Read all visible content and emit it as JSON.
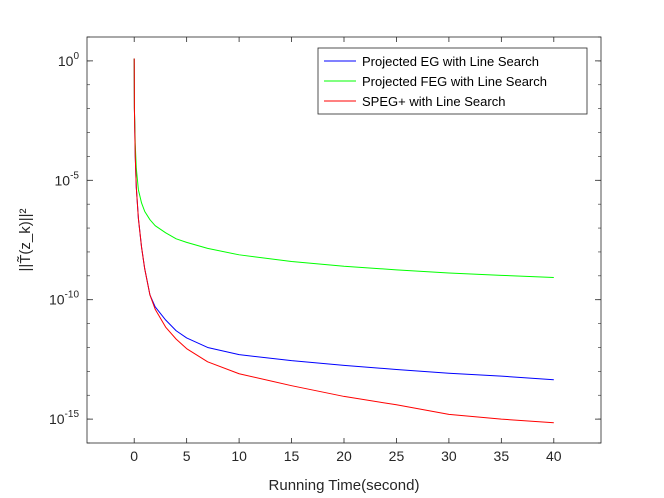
{
  "chart_data": {
    "type": "line",
    "title": "",
    "xlabel": "Running Time(second)",
    "ylabel": "||T̃(z_k)||²",
    "xlim": [
      -4.5,
      44.5
    ],
    "ylim_log10": [
      -16,
      1
    ],
    "yscale": "log",
    "grid": false,
    "legend_position": "top-right",
    "x_ticks": [
      "0",
      "5",
      "10",
      "15",
      "20",
      "25",
      "30",
      "35",
      "40"
    ],
    "y_ticks": [
      {
        "base": "10",
        "exp": "0",
        "log10": 0
      },
      {
        "base": "10",
        "exp": "-5",
        "log10": -5
      },
      {
        "base": "10",
        "exp": "-10",
        "log10": -10
      },
      {
        "base": "10",
        "exp": "-15",
        "log10": -15
      }
    ],
    "series": [
      {
        "name": "Projected EG with Line Search",
        "color": "#0000ff",
        "x": [
          0,
          0.02,
          0.1,
          0.2,
          0.4,
          0.7,
          1,
          1.5,
          2,
          3,
          4,
          5,
          7,
          10,
          15,
          20,
          25,
          30,
          35,
          40
        ],
        "log10_y": [
          0.1,
          -2,
          -4,
          -5.3,
          -6.6,
          -7.8,
          -8.7,
          -9.8,
          -10.3,
          -10.85,
          -11.3,
          -11.6,
          -12.0,
          -12.3,
          -12.55,
          -12.75,
          -12.92,
          -13.08,
          -13.2,
          -13.35
        ]
      },
      {
        "name": "Projected FEG with Line Search",
        "color": "#00ff00",
        "x": [
          0,
          0.02,
          0.1,
          0.2,
          0.4,
          0.7,
          1,
          1.5,
          2,
          3,
          4,
          5,
          7,
          10,
          15,
          20,
          25,
          30,
          35,
          40
        ],
        "log10_y": [
          0.1,
          -2,
          -3.5,
          -4.5,
          -5.4,
          -5.95,
          -6.3,
          -6.65,
          -6.9,
          -7.2,
          -7.45,
          -7.6,
          -7.85,
          -8.12,
          -8.4,
          -8.6,
          -8.75,
          -8.88,
          -8.98,
          -9.07
        ]
      },
      {
        "name": "SPEG+ with Line Search",
        "color": "#ff0000",
        "x": [
          0,
          0.02,
          0.1,
          0.2,
          0.4,
          0.7,
          1,
          1.5,
          2,
          3,
          4,
          5,
          7,
          10,
          15,
          20,
          25,
          30,
          35,
          40
        ],
        "log10_y": [
          0.1,
          -2,
          -4,
          -5.3,
          -6.6,
          -7.8,
          -8.7,
          -9.8,
          -10.4,
          -11.15,
          -11.65,
          -12.05,
          -12.6,
          -13.1,
          -13.6,
          -14.05,
          -14.4,
          -14.8,
          -15.0,
          -15.15
        ]
      }
    ]
  }
}
